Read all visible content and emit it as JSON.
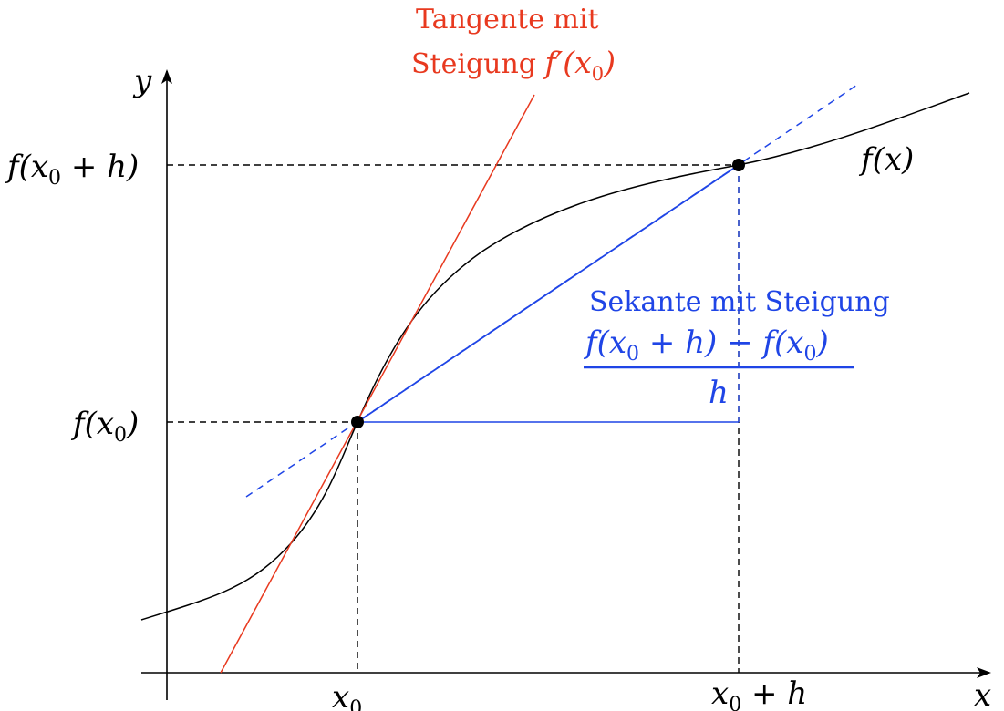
{
  "colors": {
    "curve": "#000000",
    "tangent": "#e8391f",
    "secant": "#1f45e6",
    "guides": "#000000",
    "points": "#000000"
  },
  "axes": {
    "x_label": "x",
    "y_label": "y"
  },
  "ticks": {
    "x0": {
      "var": "x",
      "sub": "0",
      "tail": ""
    },
    "x0h": {
      "var": "x",
      "sub": "0",
      "tail": " + h"
    },
    "fx0": {
      "head": "f(x",
      "sub": "0",
      "tail": ")"
    },
    "fx0h": {
      "head": "f(x",
      "sub": "0",
      "tail": " + h)"
    }
  },
  "curve_label": "f(x)",
  "tangent_label": {
    "line1": "Tangente mit",
    "line2_text": "Steigung ",
    "line2_math_head": "f′(x",
    "line2_math_sub": "0",
    "line2_math_tail": ")"
  },
  "secant_label": {
    "line1": "Sekante mit Steigung",
    "numerator_a": "f(x",
    "numerator_a_sub": "0",
    "numerator_b": " + h) − f(x",
    "numerator_b_sub": "0",
    "numerator_c": ")",
    "denominator": "h"
  }
}
